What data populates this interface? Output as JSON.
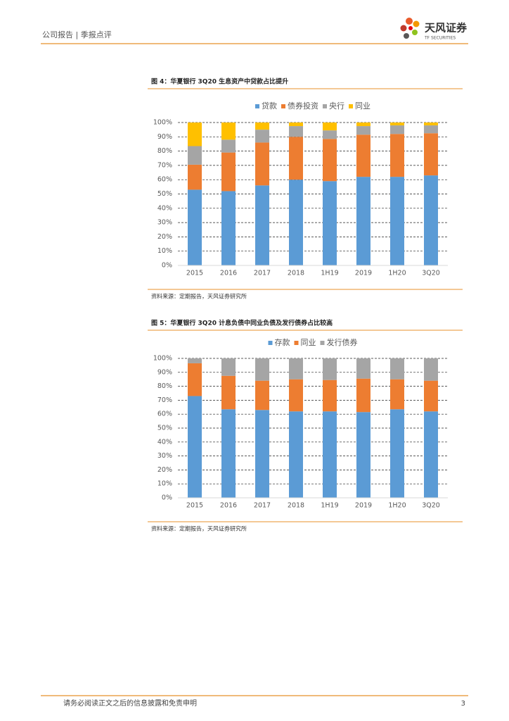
{
  "header": {
    "left": "公司报告 | 季报点评",
    "brand": "天风证券",
    "brand_en": "TF SECURITIES"
  },
  "chart_data": [
    {
      "type": "stacked-bar",
      "title": "图 4：华夏银行 3Q20 生息资产中贷款占比提升",
      "source": "资料来源：定期报告，天风证券研究所",
      "categories": [
        "2015",
        "2016",
        "2017",
        "2018",
        "1H19",
        "2019",
        "1H20",
        "3Q20"
      ],
      "series": [
        {
          "name": "贷款",
          "color": "#5b9bd5",
          "values": [
            53,
            52,
            56,
            60,
            59,
            62,
            62,
            63
          ]
        },
        {
          "name": "债券投资",
          "color": "#ed7d31",
          "values": [
            17.5,
            27,
            30,
            30,
            29.5,
            29.5,
            30,
            29.5
          ]
        },
        {
          "name": "央行",
          "color": "#a5a5a5",
          "values": [
            13,
            9,
            9,
            7.5,
            6,
            6,
            6,
            5.5
          ]
        },
        {
          "name": "同业",
          "color": "#ffc000",
          "values": [
            16.5,
            12,
            5,
            2.5,
            5.5,
            2.5,
            2,
            2
          ]
        }
      ],
      "ylim": [
        0,
        100
      ],
      "yticks": [
        {
          "value": 0,
          "label": "0%"
        },
        {
          "value": 10,
          "label": "10%"
        },
        {
          "value": 20,
          "label": "20%"
        },
        {
          "value": 30,
          "label": "30%"
        },
        {
          "value": 40,
          "label": "40%"
        },
        {
          "value": 50,
          "label": "50%"
        },
        {
          "value": 60,
          "label": "60%"
        },
        {
          "value": 70,
          "label": "70%"
        },
        {
          "value": 80,
          "label": "80%"
        },
        {
          "value": 90,
          "label": "90%"
        },
        {
          "value": 100,
          "label": "100%"
        }
      ],
      "grid": true,
      "legend": "top"
    },
    {
      "type": "stacked-bar",
      "title": "图 5：华夏银行 3Q20 计息负债中同业负债及发行债券占比较高",
      "source": "资料来源：定期报告，天风证券研究所",
      "categories": [
        "2015",
        "2016",
        "2017",
        "2018",
        "1H19",
        "2019",
        "1H20",
        "3Q20"
      ],
      "series": [
        {
          "name": "存款",
          "color": "#5b9bd5",
          "values": [
            73,
            63.5,
            63,
            62,
            62,
            61.5,
            63.5,
            62
          ]
        },
        {
          "name": "同业",
          "color": "#ed7d31",
          "values": [
            23.5,
            24,
            21,
            23,
            22.5,
            24,
            21.5,
            22
          ]
        },
        {
          "name": "发行债券",
          "color": "#a5a5a5",
          "values": [
            3.5,
            12.5,
            16,
            15,
            15.5,
            14.5,
            15,
            16
          ]
        }
      ],
      "ylim": [
        0,
        100
      ],
      "yticks": [
        {
          "value": 0,
          "label": "0%"
        },
        {
          "value": 10,
          "label": "10%"
        },
        {
          "value": 20,
          "label": "20%"
        },
        {
          "value": 30,
          "label": "30%"
        },
        {
          "value": 40,
          "label": "40%"
        },
        {
          "value": 50,
          "label": "50%"
        },
        {
          "value": 60,
          "label": "60%"
        },
        {
          "value": 70,
          "label": "70%"
        },
        {
          "value": 80,
          "label": "80%"
        },
        {
          "value": 90,
          "label": "90%"
        },
        {
          "value": 100,
          "label": "100%"
        }
      ],
      "grid": true,
      "legend": "top"
    }
  ],
  "footer": {
    "disclaimer": "请务必阅读正文之后的信息披露和免责申明",
    "page": "3"
  }
}
